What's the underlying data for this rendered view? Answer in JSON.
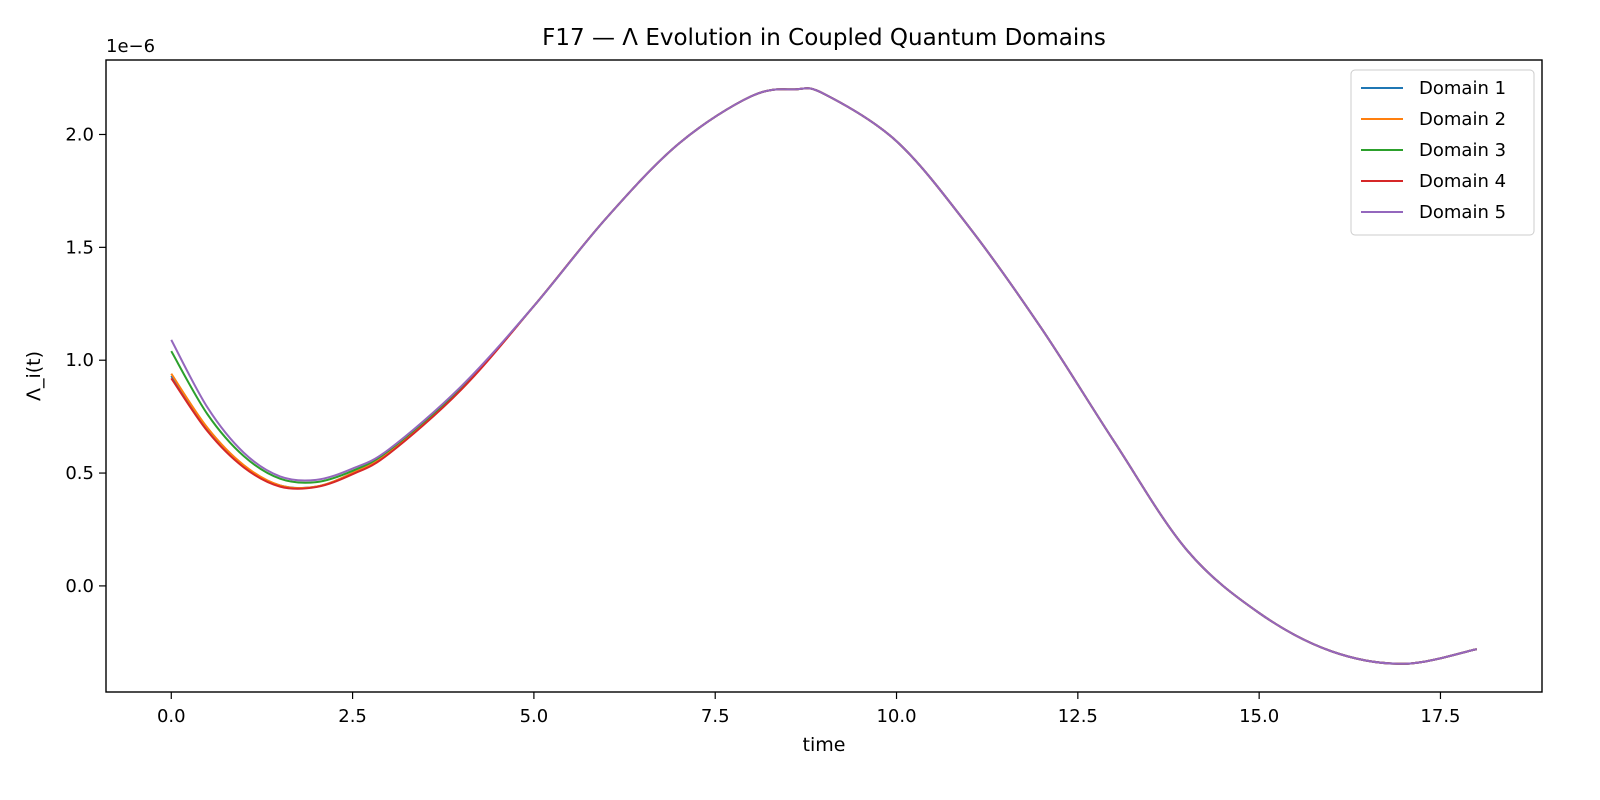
{
  "chart_data": {
    "type": "line",
    "title": "F17 — Λ Evolution in Coupled Quantum Domains",
    "xlabel": "time",
    "ylabel": "Λ_i(t)",
    "y_offset_label": "1e−6",
    "xlim": [
      -0.9,
      18.9
    ],
    "ylim": [
      -4.7e-07,
      2.33e-06
    ],
    "x_ticks": [
      0.0,
      2.5,
      5.0,
      7.5,
      10.0,
      12.5,
      15.0,
      17.5
    ],
    "x_tick_labels": [
      "0.0",
      "2.5",
      "5.0",
      "7.5",
      "10.0",
      "12.5",
      "15.0",
      "17.5"
    ],
    "y_ticks": [
      0.0,
      5e-07,
      1e-06,
      1.5e-06,
      2e-06
    ],
    "y_tick_labels": [
      "0.0",
      "0.5",
      "1.0",
      "1.5",
      "2.0"
    ],
    "grid": false,
    "legend_position": "top-right",
    "x": [
      0.0,
      0.5,
      1.0,
      1.5,
      2.0,
      2.5,
      3.0,
      4.0,
      5.0,
      6.0,
      7.0,
      8.0,
      8.6,
      9.0,
      10.0,
      11.0,
      12.0,
      13.0,
      14.0,
      15.0,
      16.0,
      17.0,
      18.0
    ],
    "series": [
      {
        "name": "Domain 1",
        "color": "#1f77b4",
        "values": [
          9.3e-07,
          6.9e-07,
          5.3e-07,
          4.45e-07,
          4.4e-07,
          5e-07,
          5.9e-07,
          8.75e-07,
          1.24e-06,
          1.63e-06,
          1.96e-06,
          2.17e-06,
          2.2e-06,
          2.18e-06,
          1.97e-06,
          1.59e-06,
          1.14e-06,
          6.4e-07,
          1.6e-07,
          -1.2e-07,
          -2.9e-07,
          -3.45e-07,
          -2.8e-07
        ]
      },
      {
        "name": "Domain 2",
        "color": "#ff7f0e",
        "values": [
          9.4e-07,
          7e-07,
          5.35e-07,
          4.45e-07,
          4.4e-07,
          5e-07,
          5.9e-07,
          8.75e-07,
          1.24e-06,
          1.63e-06,
          1.96e-06,
          2.17e-06,
          2.2e-06,
          2.18e-06,
          1.97e-06,
          1.59e-06,
          1.14e-06,
          6.4e-07,
          1.6e-07,
          -1.2e-07,
          -2.9e-07,
          -3.45e-07,
          -2.8e-07
        ]
      },
      {
        "name": "Domain 3",
        "color": "#2ca02c",
        "values": [
          1.04e-06,
          7.6e-07,
          5.75e-07,
          4.75e-07,
          4.6e-07,
          5.1e-07,
          6e-07,
          8.8e-07,
          1.24e-06,
          1.63e-06,
          1.96e-06,
          2.17e-06,
          2.2e-06,
          2.18e-06,
          1.97e-06,
          1.59e-06,
          1.14e-06,
          6.4e-07,
          1.6e-07,
          -1.2e-07,
          -2.9e-07,
          -3.45e-07,
          -2.8e-07
        ]
      },
      {
        "name": "Domain 4",
        "color": "#d62728",
        "values": [
          9.2e-07,
          6.85e-07,
          5.25e-07,
          4.4e-07,
          4.38e-07,
          4.95e-07,
          5.85e-07,
          8.7e-07,
          1.24e-06,
          1.63e-06,
          1.96e-06,
          2.17e-06,
          2.2e-06,
          2.18e-06,
          1.97e-06,
          1.59e-06,
          1.14e-06,
          6.4e-07,
          1.6e-07,
          -1.2e-07,
          -2.9e-07,
          -3.45e-07,
          -2.8e-07
        ]
      },
      {
        "name": "Domain 5",
        "color": "#9467bd",
        "values": [
          1.09e-06,
          7.9e-07,
          5.9e-07,
          4.85e-07,
          4.7e-07,
          5.2e-07,
          6.05e-07,
          8.85e-07,
          1.24e-06,
          1.63e-06,
          1.96e-06,
          2.17e-06,
          2.2e-06,
          2.18e-06,
          1.97e-06,
          1.59e-06,
          1.14e-06,
          6.4e-07,
          1.6e-07,
          -1.2e-07,
          -2.9e-07,
          -3.45e-07,
          -2.8e-07
        ]
      }
    ]
  }
}
